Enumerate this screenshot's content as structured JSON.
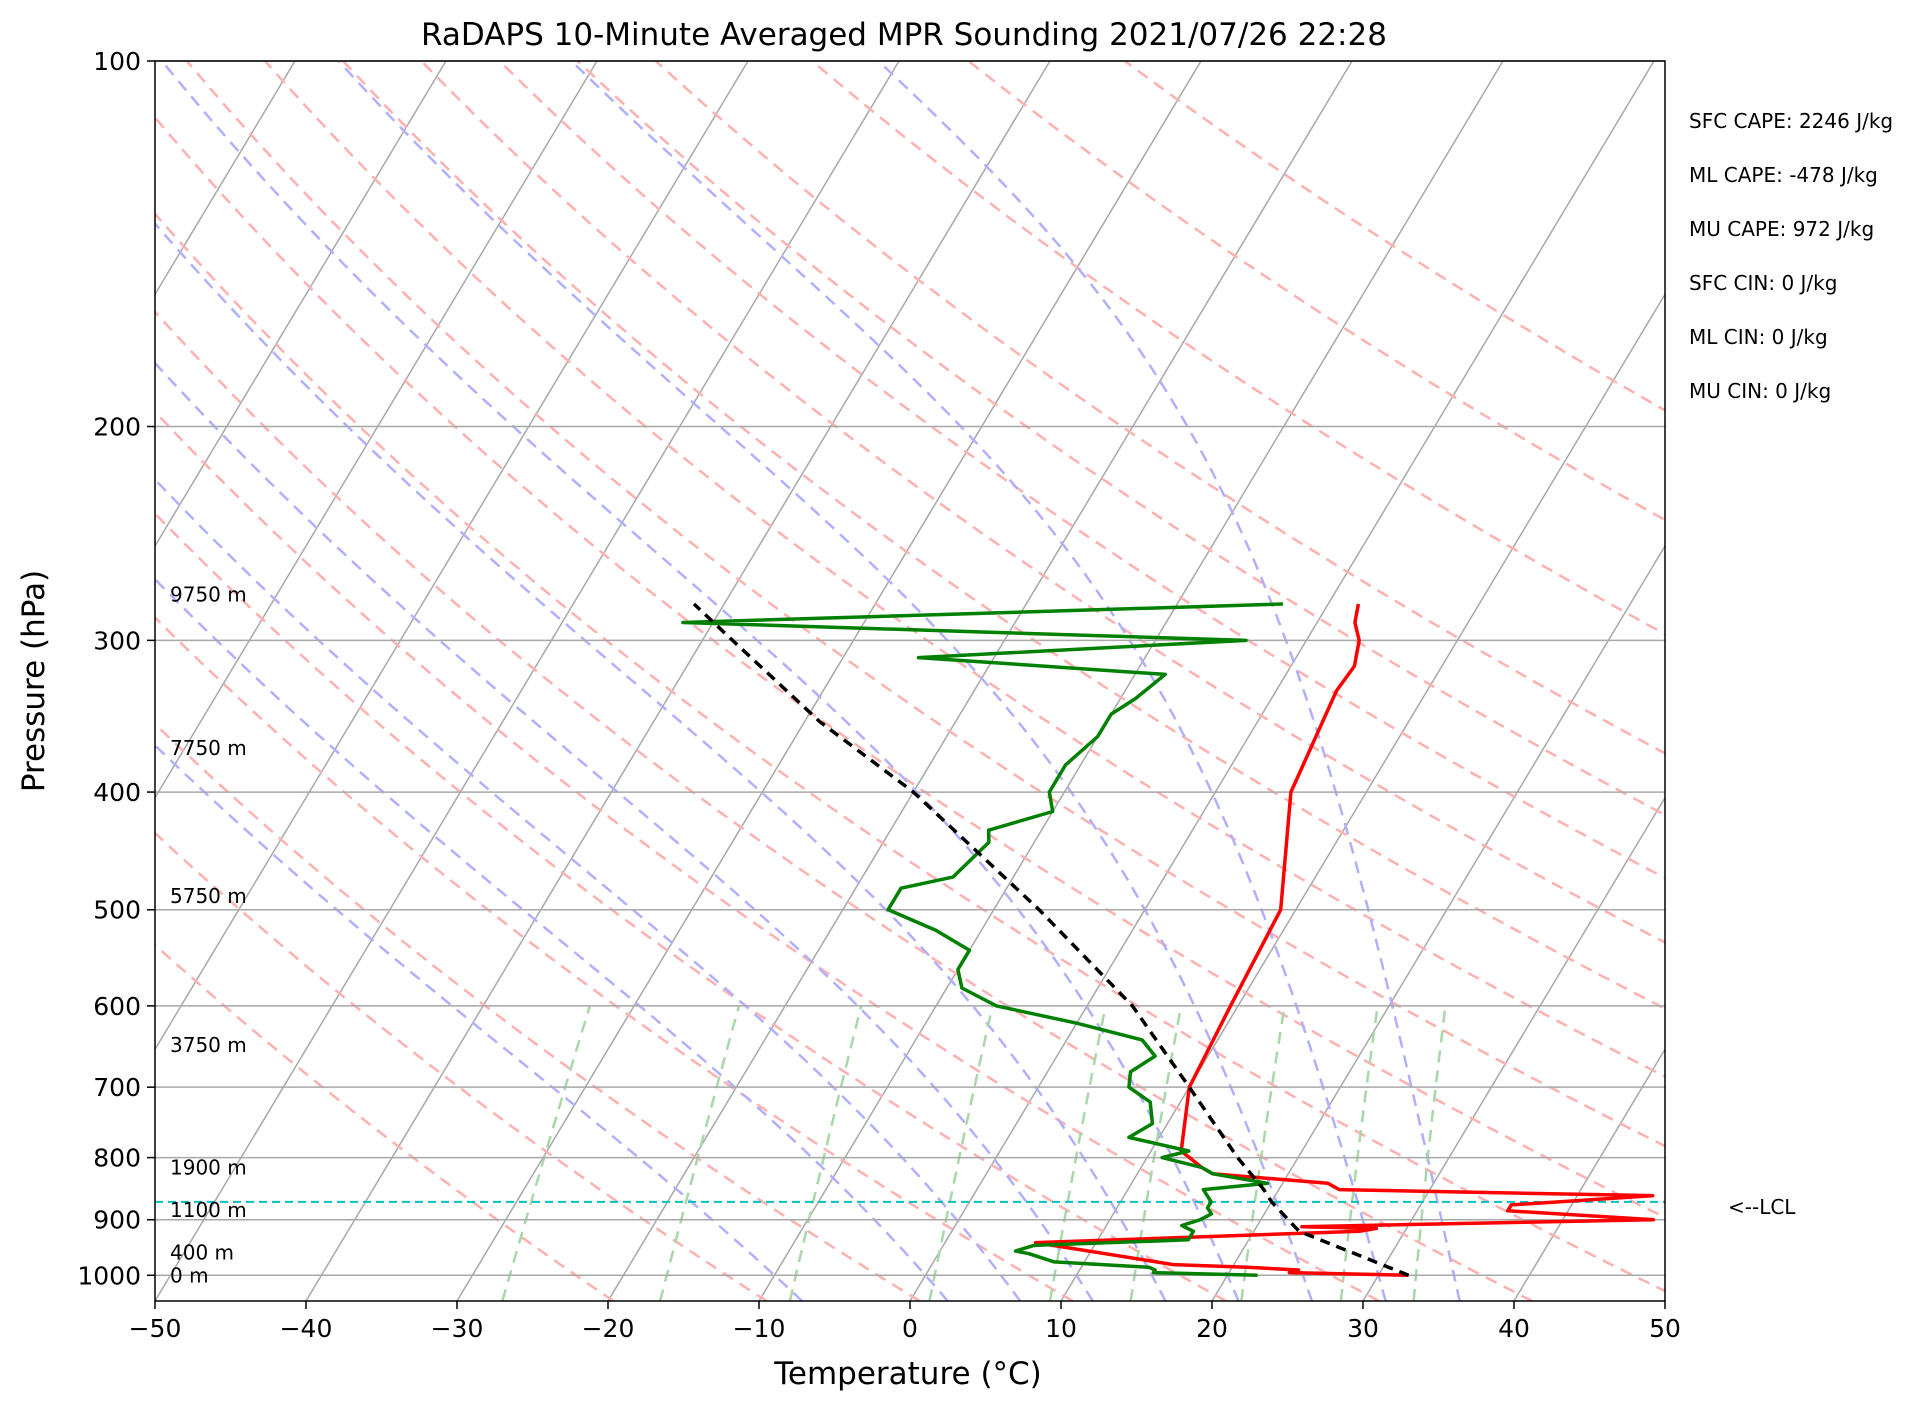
{
  "chart_data": {
    "type": "line",
    "title": "RaDAPS 10-Minute Averaged MPR Sounding 2021/07/26 22:28",
    "xlabel": "Temperature (°C)",
    "ylabel": "Pressure (hPa)",
    "xlim": [
      -50,
      50
    ],
    "ylim": [
      1050,
      100
    ],
    "y_scale": "log",
    "skew": true,
    "x_ticks": [
      -50,
      -40,
      -30,
      -20,
      -10,
      0,
      10,
      20,
      30,
      40,
      50
    ],
    "x_tick_labels": [
      "−50",
      "−40",
      "−30",
      "−20",
      "−10",
      "0",
      "10",
      "20",
      "30",
      "40",
      "50"
    ],
    "y_ticks": [
      100,
      200,
      300,
      400,
      500,
      600,
      700,
      800,
      900,
      1000
    ],
    "y_tick_labels": [
      "100",
      "200",
      "300",
      "400",
      "500",
      "600",
      "700",
      "800",
      "900",
      "1000"
    ],
    "series": [
      {
        "color": "#ff0000",
        "points": [
          [
            1000,
            32.0
          ],
          [
            995,
            24.0
          ],
          [
            990,
            24.5
          ],
          [
            985,
            21.0
          ],
          [
            980,
            16.0
          ],
          [
            940,
            6.0
          ],
          [
            920,
            27.0
          ],
          [
            915,
            28.0
          ],
          [
            912,
            23.0
          ],
          [
            900,
            46.0
          ],
          [
            885,
            36.0
          ],
          [
            875,
            36.0
          ],
          [
            860,
            45.0
          ],
          [
            850,
            24.0
          ],
          [
            840,
            23.0
          ],
          [
            825,
            15.0
          ],
          [
            815,
            14.0
          ],
          [
            790,
            12.0
          ],
          [
            700,
            10.0
          ],
          [
            600,
            9.5
          ],
          [
            500,
            9.0
          ],
          [
            400,
            5.0
          ],
          [
            330,
            4.0
          ],
          [
            315,
            4.2
          ],
          [
            300,
            3.5
          ],
          [
            290,
            2.5
          ],
          [
            280,
            2.0
          ]
        ]
      },
      {
        "color": "#008000",
        "points": [
          [
            1000,
            22.0
          ],
          [
            995,
            15.0
          ],
          [
            990,
            15.0
          ],
          [
            985,
            14.5
          ],
          [
            975,
            8.0
          ],
          [
            960,
            6.0
          ],
          [
            955,
            5.0
          ],
          [
            945,
            6.0
          ],
          [
            935,
            16.0
          ],
          [
            920,
            16.0
          ],
          [
            910,
            15.0
          ],
          [
            900,
            16.0
          ],
          [
            890,
            16.5
          ],
          [
            880,
            16.0
          ],
          [
            870,
            16.0
          ],
          [
            850,
            15.0
          ],
          [
            840,
            19.0
          ],
          [
            825,
            15.0
          ],
          [
            815,
            14.0
          ],
          [
            800,
            11.0
          ],
          [
            790,
            12.5
          ],
          [
            770,
            8.0
          ],
          [
            750,
            9.0
          ],
          [
            720,
            8.0
          ],
          [
            700,
            6.0
          ],
          [
            680,
            5.5
          ],
          [
            660,
            6.5
          ],
          [
            640,
            5.0
          ],
          [
            620,
            0.0
          ],
          [
            600,
            -6.0
          ],
          [
            580,
            -9.0
          ],
          [
            560,
            -10.0
          ],
          [
            540,
            -10.0
          ],
          [
            520,
            -13.0
          ],
          [
            500,
            -17.0
          ],
          [
            480,
            -17.0
          ],
          [
            470,
            -14.0
          ],
          [
            440,
            -13.0
          ],
          [
            430,
            -13.5
          ],
          [
            415,
            -10.0
          ],
          [
            400,
            -11.0
          ],
          [
            380,
            -11.0
          ],
          [
            360,
            -10.0
          ],
          [
            345,
            -10.0
          ],
          [
            335,
            -9.0
          ],
          [
            320,
            -8.0
          ],
          [
            310,
            -25.0
          ],
          [
            300,
            -4.0
          ],
          [
            290,
            -42.0
          ],
          [
            280,
            -3.0
          ]
        ]
      },
      {
        "color": "#000000",
        "style": "dashed",
        "points": [
          [
            1000,
            32.0
          ],
          [
            920,
            23.0
          ],
          [
            870,
            20.0
          ],
          [
            850,
            19.0
          ],
          [
            800,
            16.0
          ],
          [
            700,
            10.0
          ],
          [
            600,
            3.0
          ],
          [
            500,
            -7.0
          ],
          [
            400,
            -20.0
          ],
          [
            350,
            -29.0
          ],
          [
            300,
            -38.0
          ],
          [
            280,
            -42.0
          ]
        ]
      }
    ],
    "reference_lines": {
      "lcl_pressure": 870,
      "lcl_label": "<--LCL",
      "isobars": [
        100,
        200,
        300,
        400,
        500,
        600,
        700,
        800,
        900,
        1000
      ],
      "isotherms": [
        -150,
        -140,
        -130,
        -120,
        -110,
        -100,
        -90,
        -80,
        -70,
        -60,
        -50,
        -40,
        -30,
        -20,
        -10,
        0,
        10,
        20,
        30,
        40,
        50
      ],
      "dry_adiabats_theta_k": [
        250,
        260,
        270,
        280,
        290,
        300,
        310,
        320,
        330,
        340,
        350,
        360,
        370,
        380,
        390,
        400,
        420,
        440,
        460
      ],
      "moist_adiabats_start_c": [
        -10,
        0,
        5,
        10,
        15,
        20,
        25,
        30,
        35
      ],
      "mixing_ratio_lines_gkg": [
        0.4,
        1,
        2,
        4,
        7,
        10,
        16,
        24,
        32
      ]
    },
    "height_labels": [
      {
        "text": "9750 m",
        "pressure": 275
      },
      {
        "text": "7750 m",
        "pressure": 368
      },
      {
        "text": "5750 m",
        "pressure": 487
      },
      {
        "text": "3750 m",
        "pressure": 646
      },
      {
        "text": "1900 m",
        "pressure": 815
      },
      {
        "text": "1100 m",
        "pressure": 884
      },
      {
        "text": "400 m",
        "pressure": 958
      },
      {
        "text": "0 m",
        "pressure": 1000
      }
    ],
    "annotations": [
      "SFC CAPE: 2246 J/kg",
      "ML CAPE: -478 J/kg",
      "MU CAPE: 972 J/kg",
      "SFC CIN: 0 J/kg",
      "ML CIN: 0 J/kg",
      "MU CIN: 0 J/kg"
    ],
    "colors": {
      "temperature": "#ff0000",
      "dewpoint": "#008000",
      "parcel": "#000000",
      "lcl_line": "#00c0c0",
      "isotherm": "#a8a8a8",
      "dry_adiabat": "#ffb0b0",
      "moist_adiabat": "#b0b0ff",
      "mixing_ratio": "#a8d8a8"
    }
  }
}
